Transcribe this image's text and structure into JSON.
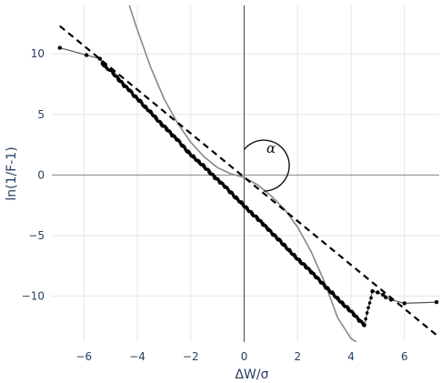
{
  "chart_data": {
    "type": "scatter",
    "title": "",
    "xlabel": "ΔW/σ",
    "ylabel": "ln(1/F-1)",
    "xlim": [
      -7.2,
      7.3
    ],
    "ylim": [
      -13.8,
      14
    ],
    "grid": true,
    "xticks": [
      -6,
      -4,
      -2,
      0,
      2,
      4,
      6
    ],
    "yticks": [
      -10,
      -5,
      0,
      5,
      10
    ],
    "xtick_labels": [
      "−6",
      "−4",
      "−2",
      "0",
      "2",
      "4",
      "6"
    ],
    "ytick_labels": [
      "−10",
      "−5",
      "0",
      "5",
      "10"
    ],
    "annotation": "α",
    "series": [
      {
        "kind": "empirical-points",
        "color": "#000000",
        "x": [
          -6.9,
          -5.9,
          -5.4,
          -5.3,
          -5.2,
          -4.9,
          -4.7,
          -4.5,
          -4.3,
          -4.1,
          -3.9,
          -3.7,
          -3.5,
          -3.3,
          -3.1,
          -2.9,
          -2.7,
          -2.5,
          -2.3,
          -2.1,
          -1.9,
          -1.7,
          -1.5,
          -1.3,
          -1.1,
          -0.9,
          -0.7,
          -0.5,
          -0.3,
          -0.1,
          0.1,
          0.3,
          0.5,
          0.7,
          0.9,
          1.1,
          1.3,
          1.5,
          1.7,
          1.9,
          2.1,
          2.3,
          2.5,
          2.7,
          2.9,
          3.1,
          3.3,
          3.5,
          3.7,
          3.9,
          4.1,
          4.3,
          4.5,
          4.8,
          5.0,
          5.2,
          5.3,
          5.5,
          6.0,
          7.2
        ],
        "y": [
          10.5,
          9.9,
          9.6,
          9.2,
          9.0,
          8.4,
          7.9,
          7.4,
          7.0,
          6.5,
          6.1,
          5.6,
          5.2,
          4.7,
          4.2,
          3.8,
          3.3,
          2.9,
          2.4,
          1.9,
          1.5,
          1.1,
          0.7,
          0.25,
          -0.2,
          -0.6,
          -1.0,
          -1.45,
          -1.9,
          -2.3,
          -2.75,
          -3.2,
          -3.6,
          -4.05,
          -4.5,
          -4.95,
          -5.35,
          -5.8,
          -6.25,
          -6.7,
          -7.15,
          -7.55,
          -8.0,
          -8.45,
          -8.9,
          -9.35,
          -9.75,
          -10.2,
          -10.65,
          -11.05,
          -11.5,
          -12.0,
          -12.4,
          -9.6,
          -9.7,
          -9.9,
          -10.1,
          -10.3,
          -10.6,
          -10.5
        ]
      },
      {
        "kind": "linear-fit",
        "style": "dashed",
        "color": "#000000",
        "x": [
          -6.9,
          7.3
        ],
        "y": [
          12.3,
          -13.4
        ]
      },
      {
        "kind": "curve",
        "color": "#888888",
        "x": [
          -4.3,
          -4.0,
          -3.5,
          -3.0,
          -2.5,
          -2.0,
          -1.5,
          -1.0,
          -0.5,
          0,
          0.5,
          1.0,
          1.5,
          2.0,
          2.5,
          3.0,
          3.5,
          4.0,
          4.2
        ],
        "y": [
          14.0,
          12.0,
          8.9,
          6.3,
          4.3,
          2.7,
          1.5,
          0.6,
          0.1,
          -0.2,
          -0.8,
          -1.7,
          -2.8,
          -4.3,
          -6.3,
          -8.8,
          -11.8,
          -13.5,
          -13.8
        ]
      }
    ]
  }
}
